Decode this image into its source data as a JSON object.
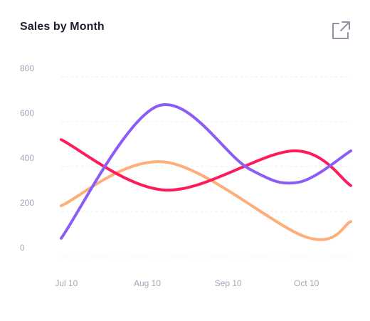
{
  "card": {
    "title": "Sales by Month",
    "expand_icon": "external-link-icon"
  },
  "colors": {
    "grid": "#eceef3",
    "tick_text": "#a4a6b8",
    "title": "#1f2033",
    "icon": "#8e93a8"
  },
  "chart_data": {
    "type": "line",
    "smooth": true,
    "grid": true,
    "title": "Sales by Month",
    "ylim": [
      0,
      800
    ],
    "yticks": [
      0,
      200,
      400,
      600,
      800
    ],
    "x_range": [
      "2023-07-08",
      "2023-10-27"
    ],
    "xticks": [
      {
        "label": "Jul 10",
        "date": "2023-07-10"
      },
      {
        "label": "Aug 10",
        "date": "2023-08-10"
      },
      {
        "label": "Sep 10",
        "date": "2023-09-10"
      },
      {
        "label": "Oct 10",
        "date": "2023-10-10"
      }
    ],
    "series": [
      {
        "color": "#8b5cf6",
        "points": [
          {
            "date": "2023-07-08",
            "value": 80
          },
          {
            "date": "2023-08-14",
            "value": 670
          },
          {
            "date": "2023-09-18",
            "value": 390
          },
          {
            "date": "2023-10-07",
            "value": 330
          },
          {
            "date": "2023-10-27",
            "value": 470
          }
        ]
      },
      {
        "color": "#ff1a5b",
        "points": [
          {
            "date": "2023-07-08",
            "value": 520
          },
          {
            "date": "2023-08-17",
            "value": 295
          },
          {
            "date": "2023-10-05",
            "value": 470
          },
          {
            "date": "2023-10-27",
            "value": 315
          }
        ]
      },
      {
        "color": "#ffae7a",
        "points": [
          {
            "date": "2023-07-08",
            "value": 225
          },
          {
            "date": "2023-08-17",
            "value": 420
          },
          {
            "date": "2023-10-10",
            "value": 85
          },
          {
            "date": "2023-10-27",
            "value": 155
          }
        ]
      }
    ]
  }
}
